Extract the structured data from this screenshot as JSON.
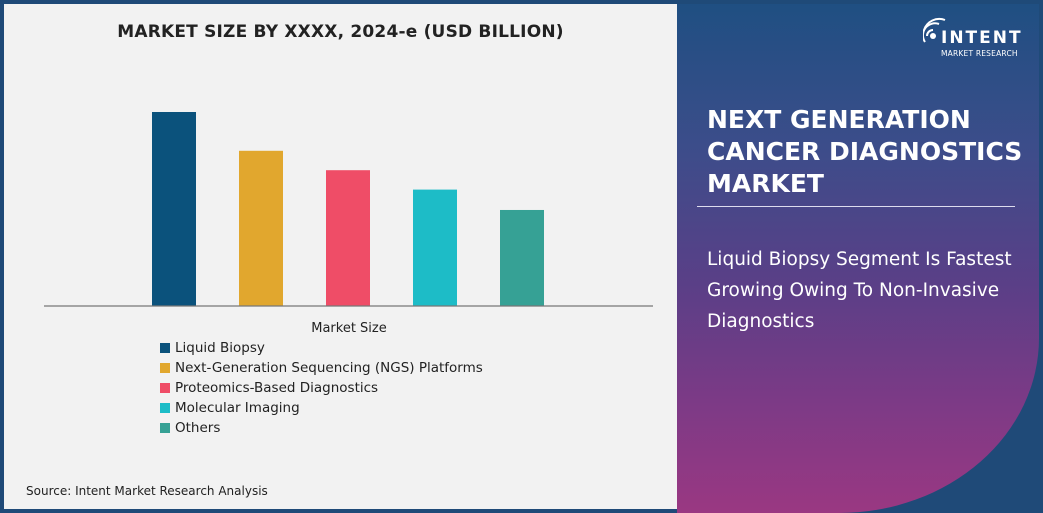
{
  "chart_data": {
    "type": "bar",
    "title": "MARKET SIZE BY XXXX, 2024-e (USD BILLION)",
    "xlabel": "Market Size",
    "ylabel": "",
    "categories": [
      "Liquid Biopsy",
      "Next-Generation Sequencing (NGS) Platforms",
      "Proteomics-Based Diagnostics",
      "Molecular Imaging",
      "Others"
    ],
    "values": [
      100,
      80,
      70,
      60,
      49.5
    ],
    "value_note_hidden": null,
    "ylim": [
      0,
      100
    ],
    "colors": [
      "#0b527c",
      "#e1a72e",
      "#ef4d67",
      "#1dbcc7",
      "#36a195"
    ],
    "grid": false,
    "legend_placement": "bottom-left"
  },
  "source": "Source: Intent Market Research Analysis",
  "panel": {
    "logo_brand": "INTENT",
    "logo_sub": "MARKET RESEARCH",
    "heading": "NEXT GENERATION CANCER DIAGNOSTICS MARKET",
    "subheading": "Liquid Biopsy Segment Is Fastest Growing Owing To Non-Invasive Diagnostics"
  }
}
